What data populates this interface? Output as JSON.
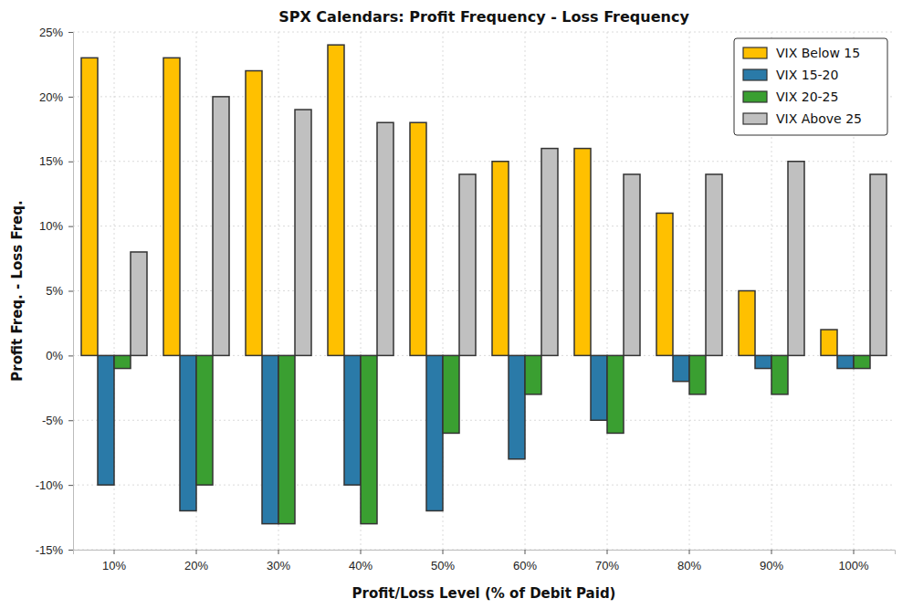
{
  "chart_data": {
    "type": "bar",
    "title": "SPX Calendars: Profit Frequency - Loss Frequency",
    "x_label": "Profit/Loss Level (% of Debit Paid)",
    "y_label": "Profit Freq. - Loss Freq.",
    "categories": [
      "10%",
      "20%",
      "30%",
      "40%",
      "50%",
      "60%",
      "70%",
      "80%",
      "90%",
      "100%"
    ],
    "series": [
      {
        "name": "VIX Below 15",
        "color": "#ffc000",
        "values": [
          23,
          23,
          22,
          24,
          18,
          15,
          16,
          11,
          5,
          2
        ]
      },
      {
        "name": "VIX 15-20",
        "color": "#2a7aa8",
        "values": [
          -10,
          -12,
          -13,
          -10,
          -12,
          -8,
          -5,
          -2,
          -1,
          -1
        ]
      },
      {
        "name": "VIX 20-25",
        "color": "#3a9f31",
        "values": [
          -1,
          -10,
          -13,
          -13,
          -6,
          -3,
          -6,
          -3,
          -3,
          -1
        ]
      },
      {
        "name": "VIX Above 25",
        "color": "#c0c0c0",
        "values": [
          8,
          20,
          19,
          18,
          14,
          16,
          14,
          14,
          15,
          14
        ]
      }
    ],
    "ylim": [
      -15,
      25
    ],
    "yticks": [
      {
        "value": -15,
        "label": "-15%"
      },
      {
        "value": -10,
        "label": "-10%"
      },
      {
        "value": -5,
        "label": "-5%"
      },
      {
        "value": 0,
        "label": "0%"
      },
      {
        "value": 5,
        "label": "5%"
      },
      {
        "value": 10,
        "label": "10%"
      },
      {
        "value": 15,
        "label": "15%"
      },
      {
        "value": 20,
        "label": "20%"
      },
      {
        "value": 25,
        "label": "25%"
      }
    ],
    "grid": true,
    "legend": "upper right"
  }
}
